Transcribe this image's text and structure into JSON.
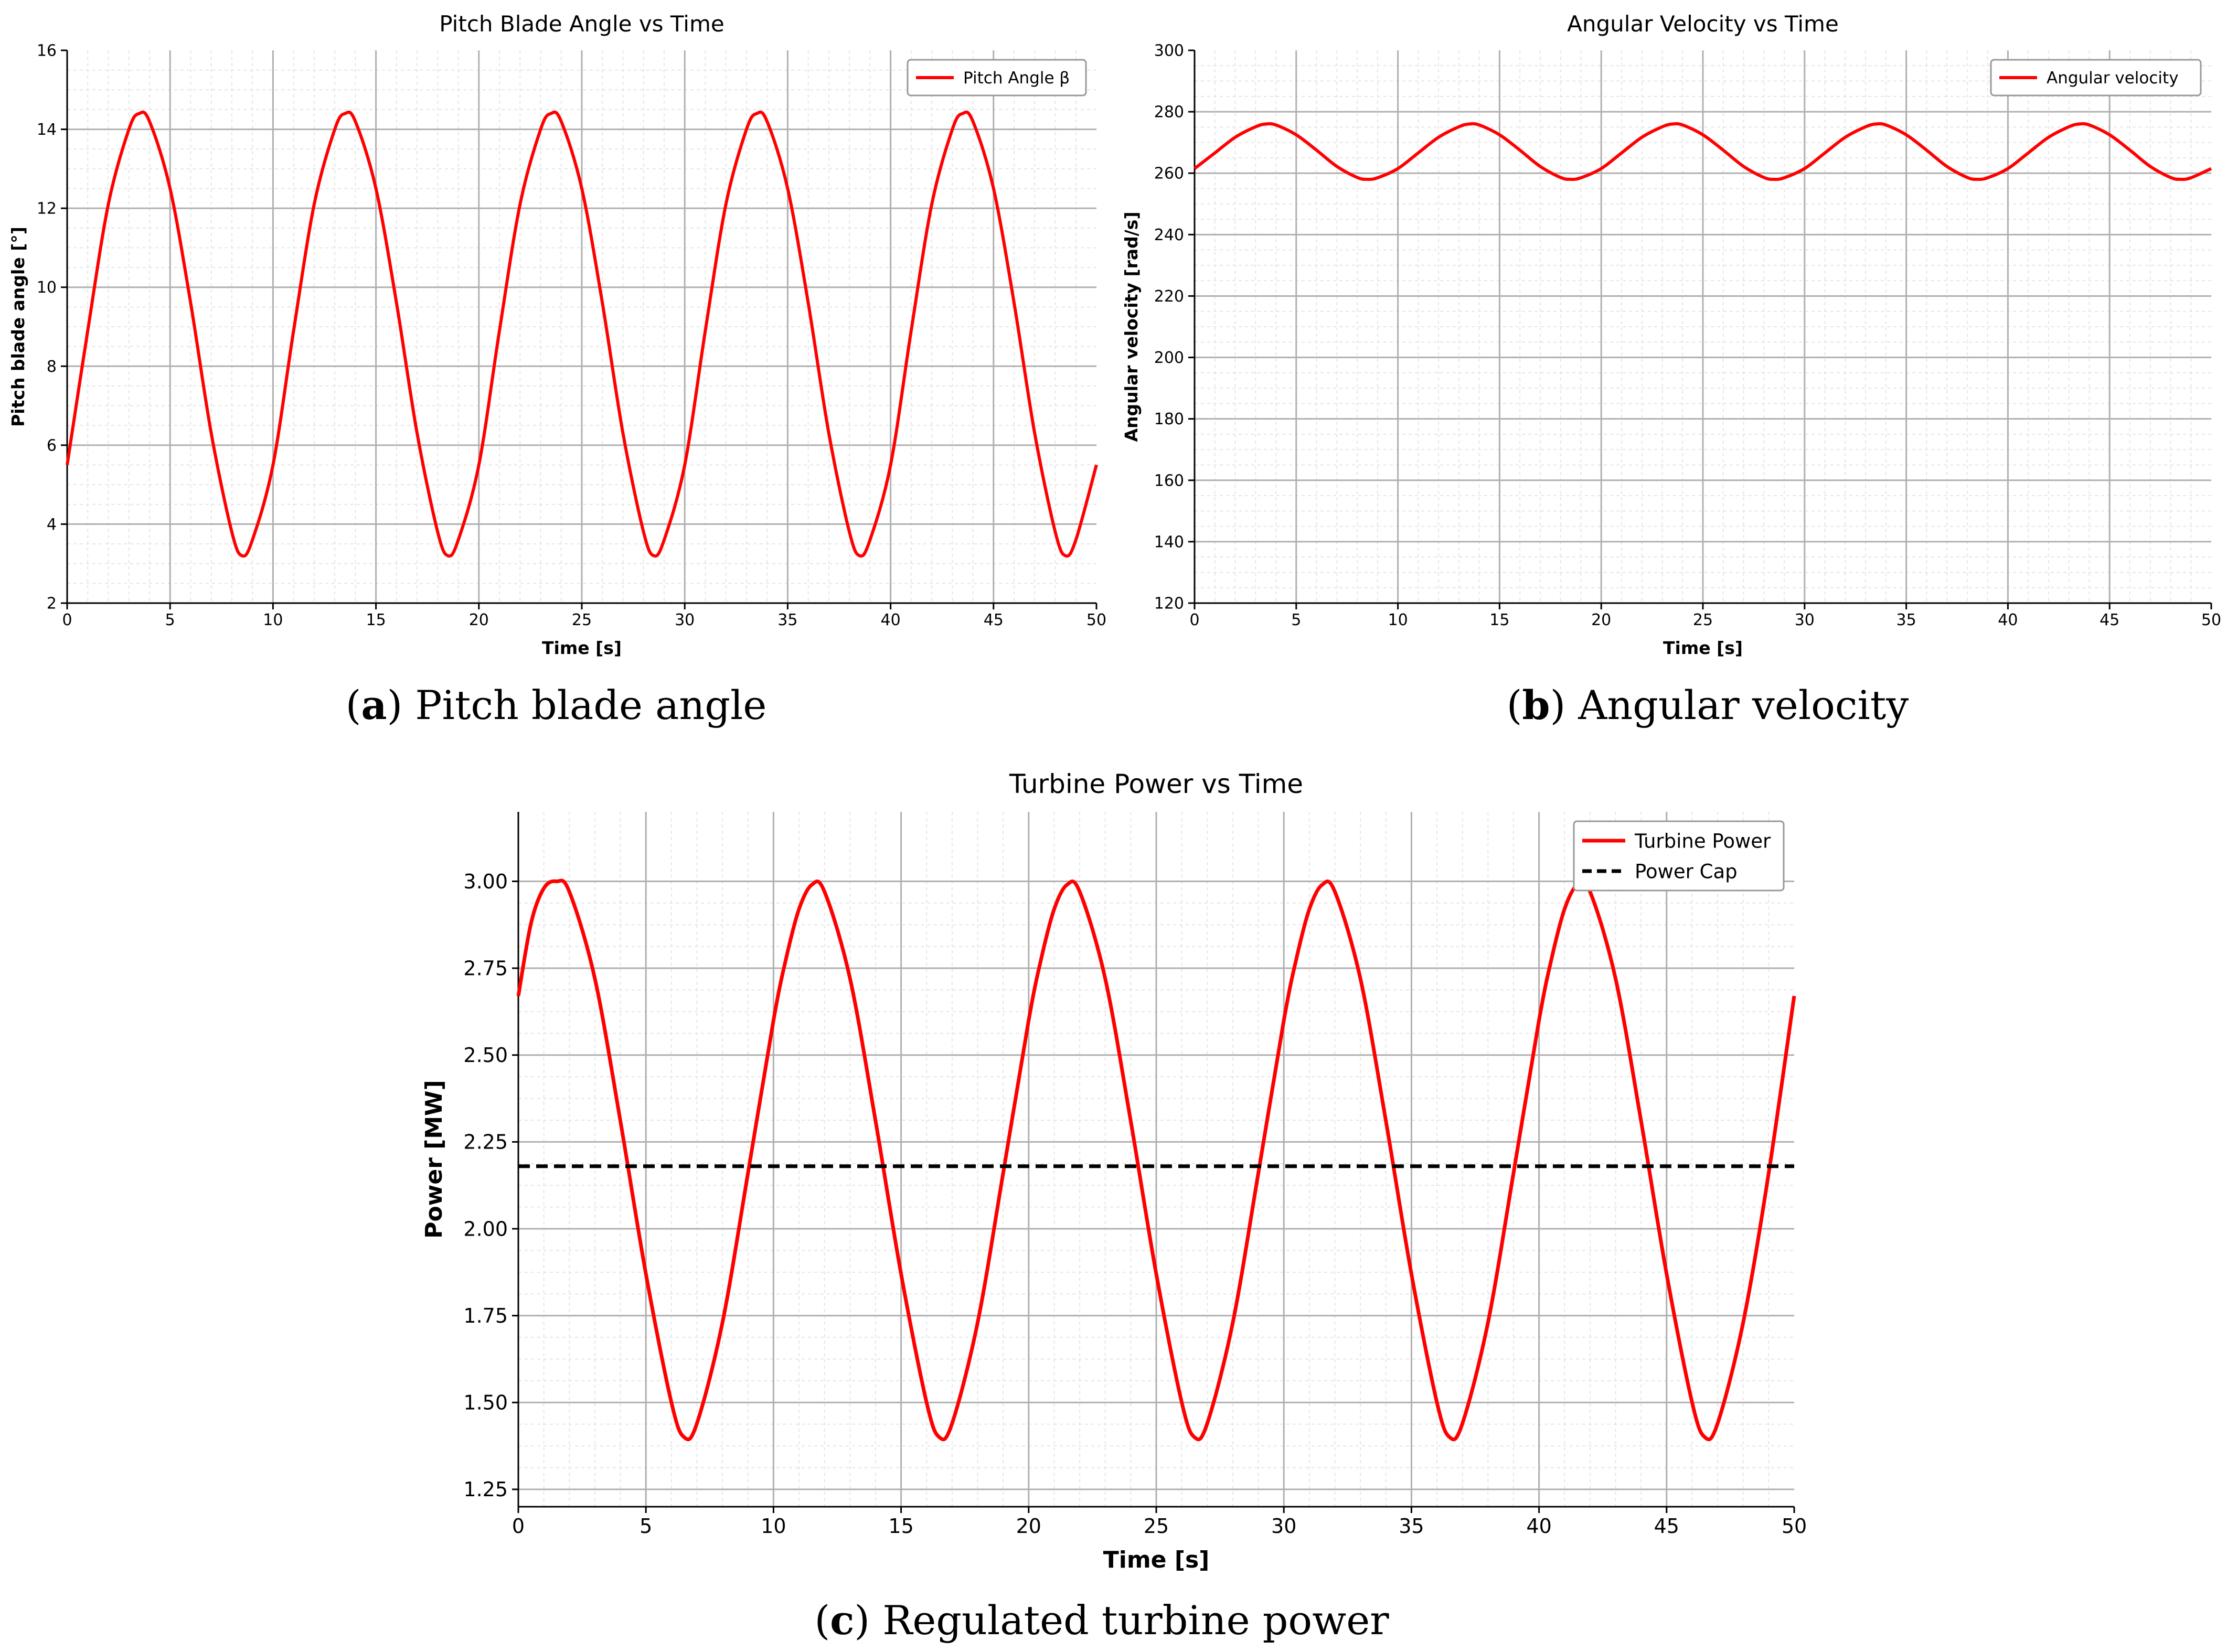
{
  "captions": [
    {
      "letter": "a",
      "text": "Pitch blade angle"
    },
    {
      "letter": "b",
      "text": "Angular velocity"
    },
    {
      "letter": "c",
      "text": "Regulated turbine power"
    }
  ],
  "colors": {
    "series": "#ff0000",
    "cap": "#000000",
    "grid_major": "#b0b0b0",
    "grid_minor": "#e6e6e6"
  },
  "chart_data": [
    {
      "type": "line",
      "title": "Pitch Blade Angle vs Time",
      "xlabel": "Time [s]",
      "ylabel": "Pitch blade angle [°]",
      "xlim": [
        0,
        50
      ],
      "ylim": [
        2,
        16
      ],
      "xticks": [
        0,
        5,
        10,
        15,
        20,
        25,
        30,
        35,
        40,
        45,
        50
      ],
      "yticks": [
        2,
        4,
        6,
        8,
        10,
        12,
        14,
        16
      ],
      "grid": true,
      "legend_position": "top-right",
      "series": [
        {
          "name": "Pitch Angle β",
          "style": "solid",
          "x": [
            0,
            1,
            2,
            3,
            3.5,
            4,
            5,
            6,
            7,
            8,
            8.5,
            9,
            10,
            11,
            12,
            13,
            13.5,
            14,
            15,
            16,
            17,
            18,
            18.5,
            19,
            20,
            21,
            22,
            23,
            23.5,
            24,
            25,
            26,
            27,
            28,
            28.5,
            29,
            30,
            31,
            32,
            33,
            33.5,
            34,
            35,
            36,
            37,
            38,
            38.5,
            39,
            40,
            41,
            42,
            43,
            43.5,
            44,
            45,
            46,
            47,
            48,
            48.5,
            49,
            50
          ],
          "y": [
            5.5,
            8.9,
            12.1,
            14.0,
            14.4,
            14.2,
            12.5,
            9.6,
            6.3,
            3.8,
            3.2,
            3.6,
            5.5,
            8.9,
            12.1,
            14.0,
            14.4,
            14.2,
            12.5,
            9.6,
            6.3,
            3.8,
            3.2,
            3.6,
            5.5,
            8.9,
            12.1,
            14.0,
            14.4,
            14.2,
            12.5,
            9.6,
            6.3,
            3.8,
            3.2,
            3.6,
            5.5,
            8.9,
            12.1,
            14.0,
            14.4,
            14.2,
            12.5,
            9.6,
            6.3,
            3.8,
            3.2,
            3.6,
            5.5,
            8.9,
            12.1,
            14.0,
            14.4,
            14.2,
            12.5,
            9.6,
            6.3,
            3.8,
            3.2,
            3.6,
            5.5
          ]
        }
      ]
    },
    {
      "type": "line",
      "title": "Angular Velocity vs Time",
      "xlabel": "Time [s]",
      "ylabel": "Angular velocity [rad/s]",
      "xlim": [
        0,
        50
      ],
      "ylim": [
        120,
        300
      ],
      "xticks": [
        0,
        5,
        10,
        15,
        20,
        25,
        30,
        35,
        40,
        45,
        50
      ],
      "yticks": [
        120,
        140,
        160,
        180,
        200,
        220,
        240,
        260,
        280,
        300
      ],
      "grid": true,
      "legend_position": "top-right",
      "series": [
        {
          "name": "Angular velocity",
          "style": "solid",
          "x": [
            0,
            1,
            2,
            3,
            3.5,
            4,
            5,
            6,
            7,
            8,
            8.5,
            9,
            10,
            11,
            12,
            13,
            13.5,
            14,
            15,
            16,
            17,
            18,
            18.5,
            19,
            20,
            21,
            22,
            23,
            23.5,
            24,
            25,
            26,
            27,
            28,
            28.5,
            29,
            30,
            31,
            32,
            33,
            33.5,
            34,
            35,
            36,
            37,
            38,
            38.5,
            39,
            40,
            41,
            42,
            43,
            43.5,
            44,
            45,
            46,
            47,
            48,
            48.5,
            49,
            50
          ],
          "y": [
            261.5,
            266.6,
            271.7,
            275.1,
            276.0,
            275.7,
            272.5,
            267.5,
            262.2,
            258.6,
            258.0,
            258.5,
            261.5,
            266.6,
            271.7,
            275.1,
            276.0,
            275.7,
            272.5,
            267.5,
            262.2,
            258.6,
            258.0,
            258.5,
            261.5,
            266.6,
            271.7,
            275.1,
            276.0,
            275.7,
            272.5,
            267.5,
            262.2,
            258.6,
            258.0,
            258.5,
            261.5,
            266.6,
            271.7,
            275.1,
            276.0,
            275.7,
            272.5,
            267.5,
            262.2,
            258.6,
            258.0,
            258.5,
            261.5,
            266.6,
            271.7,
            275.1,
            276.0,
            275.7,
            272.5,
            267.5,
            262.2,
            258.6,
            258.0,
            258.5,
            261.5
          ]
        }
      ]
    },
    {
      "type": "line",
      "title": "Turbine Power vs Time",
      "xlabel": "Time [s]",
      "ylabel": "Power [MW]",
      "xlim": [
        0,
        50
      ],
      "ylim": [
        1.2,
        3.2
      ],
      "xticks": [
        0,
        5,
        10,
        15,
        20,
        25,
        30,
        35,
        40,
        45,
        50
      ],
      "yticks": [
        1.25,
        1.5,
        1.75,
        2.0,
        2.25,
        2.5,
        2.75,
        3.0
      ],
      "ytick_labels": [
        "1.25",
        "1.50",
        "1.75",
        "2.00",
        "2.25",
        "2.50",
        "2.75",
        "3.00"
      ],
      "grid": true,
      "legend_position": "top-right",
      "series": [
        {
          "name": "Turbine Power",
          "style": "solid",
          "x": [
            0,
            0.5,
            1,
            1.5,
            2,
            3,
            4,
            5,
            6,
            6.5,
            7,
            8,
            9,
            10,
            10.5,
            11,
            11.5,
            12,
            13,
            14,
            15,
            16,
            16.5,
            17,
            18,
            19,
            20,
            20.5,
            21,
            21.5,
            22,
            23,
            24,
            25,
            26,
            26.5,
            27,
            28,
            29,
            30,
            30.5,
            31,
            31.5,
            32,
            33,
            34,
            35,
            36,
            36.5,
            37,
            38,
            39,
            40,
            40.5,
            41,
            41.5,
            42,
            43,
            44,
            45,
            46,
            46.5,
            47,
            48,
            49,
            50
          ],
          "y": [
            2.67,
            2.88,
            2.98,
            3.0,
            2.97,
            2.72,
            2.31,
            1.87,
            1.5,
            1.4,
            1.44,
            1.73,
            2.16,
            2.6,
            2.78,
            2.92,
            2.99,
            2.97,
            2.72,
            2.31,
            1.87,
            1.5,
            1.4,
            1.44,
            1.73,
            2.16,
            2.6,
            2.78,
            2.92,
            2.99,
            2.97,
            2.72,
            2.31,
            1.87,
            1.5,
            1.4,
            1.44,
            1.73,
            2.16,
            2.6,
            2.78,
            2.92,
            2.99,
            2.97,
            2.72,
            2.31,
            1.87,
            1.5,
            1.4,
            1.44,
            1.73,
            2.16,
            2.6,
            2.78,
            2.92,
            2.99,
            2.97,
            2.72,
            2.31,
            1.87,
            1.5,
            1.4,
            1.44,
            1.73,
            2.16,
            2.67
          ]
        },
        {
          "name": "Power Cap",
          "style": "dashed",
          "x": [
            0,
            50
          ],
          "y": [
            2.18,
            2.18
          ]
        }
      ]
    }
  ]
}
